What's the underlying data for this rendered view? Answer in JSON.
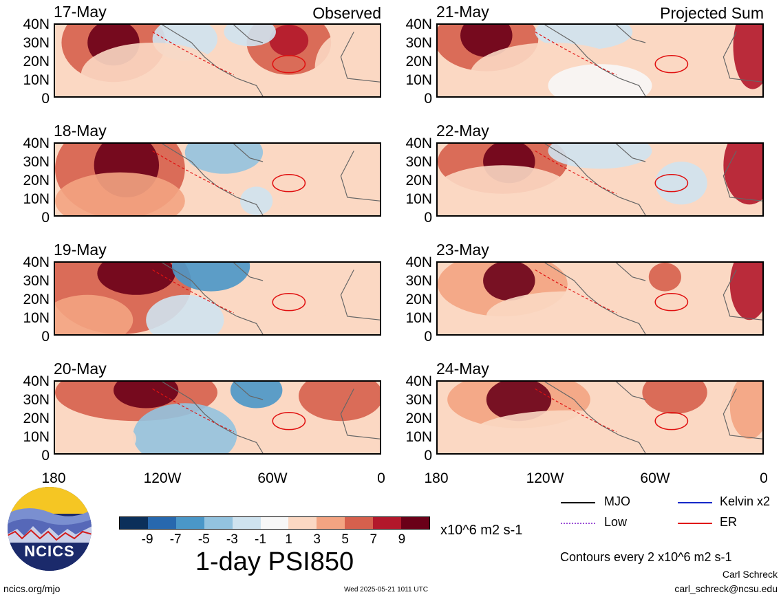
{
  "panels": {
    "left": [
      {
        "date": "17-May",
        "tag": "Observed"
      },
      {
        "date": "18-May",
        "tag": ""
      },
      {
        "date": "19-May",
        "tag": ""
      },
      {
        "date": "20-May",
        "tag": ""
      }
    ],
    "right": [
      {
        "date": "21-May",
        "tag": "Projected Sum"
      },
      {
        "date": "22-May",
        "tag": ""
      },
      {
        "date": "23-May",
        "tag": ""
      },
      {
        "date": "24-May",
        "tag": ""
      }
    ]
  },
  "lat_labels": [
    "40N",
    "30N",
    "20N",
    "10N",
    "0"
  ],
  "lon_labels": [
    "180",
    "120W",
    "60W",
    "0"
  ],
  "colorbar": {
    "colors": [
      "#0b2f5a",
      "#2768ae",
      "#4a97c8",
      "#93c3df",
      "#cfe3ef",
      "#f7f7f7",
      "#fbd8c3",
      "#f3a482",
      "#d6604d",
      "#b2182b",
      "#6a0018"
    ],
    "ticks": [
      "-9",
      "-7",
      "-5",
      "-3",
      "-1",
      "1",
      "3",
      "5",
      "7",
      "9"
    ],
    "units": "x10^6 m2 s-1"
  },
  "title": "1-day PSI850",
  "legend": {
    "items": [
      {
        "label": "MJO",
        "color": "#000000"
      },
      {
        "label": "Kelvin x2",
        "color": "#1428c8"
      },
      {
        "label": "Low",
        "color": "#9b4fd6"
      },
      {
        "label": "ER",
        "color": "#e01010"
      }
    ],
    "contours_note": "Contours every 2 x10^6 m2 s-1"
  },
  "logo": {
    "text": "NCICS"
  },
  "footer": {
    "url": "ncics.org/mjo",
    "timestamp": "Wed 2025-05-21 1011 UTC",
    "author": "Carl Schreck",
    "email": "carl_schreck@ncsu.edu"
  }
}
